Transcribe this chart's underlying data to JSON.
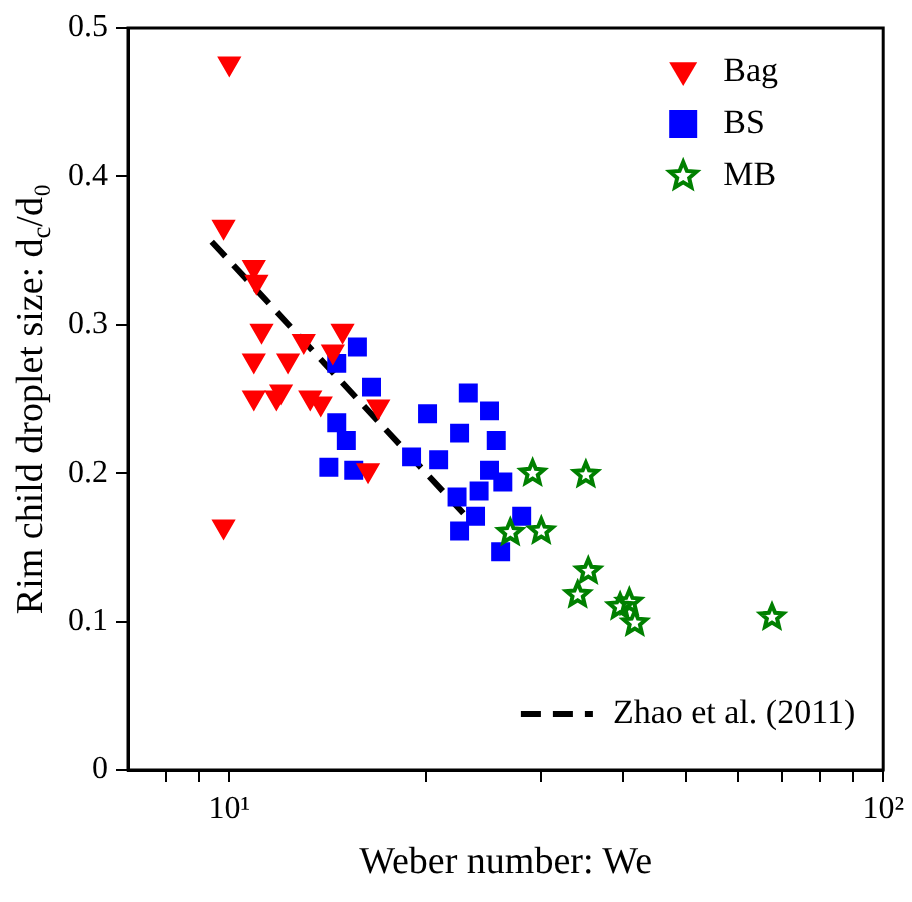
{
  "chart_data": {
    "type": "scatter",
    "xlabel": "Weber number: We",
    "ylabel": "Rim child droplet size: d$_{c}$/d₀",
    "log": "x",
    "xlim": [
      7,
      100
    ],
    "xticks": [
      {
        "value": 8,
        "label": null
      },
      {
        "value": 9,
        "label": null
      },
      {
        "value": 10,
        "label": "10¹"
      },
      {
        "value": 20,
        "label": null
      },
      {
        "value": 30,
        "label": null
      },
      {
        "value": 40,
        "label": null
      },
      {
        "value": 50,
        "label": null
      },
      {
        "value": 60,
        "label": null
      },
      {
        "value": 70,
        "label": null
      },
      {
        "value": 80,
        "label": null
      },
      {
        "value": 90,
        "label": null
      },
      {
        "value": 100,
        "label": "10²"
      }
    ],
    "ylim": [
      0,
      0.5
    ],
    "yticks": [
      0,
      0.1,
      0.2,
      0.3,
      0.4,
      0.5
    ],
    "grid": false,
    "legend": "top right",
    "series": [
      {
        "name": "Bag",
        "type": "scatter",
        "marker": "triangle",
        "color": "#ff0000",
        "x": [
          10.0,
          9.8,
          10.9,
          11.0,
          11.2,
          10.9,
          12.3,
          13.0,
          14.9,
          10.9,
          12.0,
          13.3,
          13.8,
          16.3,
          9.8,
          14.4,
          11.8,
          16.9
        ],
        "values": [
          0.476,
          0.366,
          0.339,
          0.329,
          0.296,
          0.276,
          0.276,
          0.289,
          0.296,
          0.251,
          0.255,
          0.251,
          0.247,
          0.202,
          0.164,
          0.282,
          0.251,
          0.245
        ]
      },
      {
        "name": "BS",
        "type": "scatter",
        "marker": "square",
        "color": "#0000ff",
        "x": [
          15.7,
          14.6,
          16.5,
          14.6,
          15.1,
          14.2,
          15.5,
          23.2,
          25.0,
          22.5,
          25.6,
          25.0,
          26.2,
          24.1,
          28.0,
          23.8,
          22.5,
          26.0,
          20.1,
          19.0,
          20.9,
          22.3
        ],
        "values": [
          0.285,
          0.274,
          0.258,
          0.234,
          0.222,
          0.204,
          0.202,
          0.254,
          0.242,
          0.227,
          0.222,
          0.202,
          0.194,
          0.188,
          0.171,
          0.171,
          0.161,
          0.147,
          0.24,
          0.211,
          0.209,
          0.184
        ]
      },
      {
        "name": "MB",
        "type": "scatter",
        "marker": "star",
        "color": "#008000",
        "x": [
          29.1,
          35.1,
          26.9,
          30.0,
          35.4,
          34.1,
          39.6,
          40.9,
          41.7,
          67.6
        ],
        "values": [
          0.2,
          0.199,
          0.16,
          0.161,
          0.134,
          0.118,
          0.11,
          0.113,
          0.099,
          0.103
        ]
      },
      {
        "name": "Zhao et al. (2011)",
        "type": "line",
        "line_style": "dashed",
        "color": "#000000",
        "x": [
          9.4,
          22.8
        ],
        "values": [
          0.356,
          0.173
        ]
      }
    ]
  }
}
